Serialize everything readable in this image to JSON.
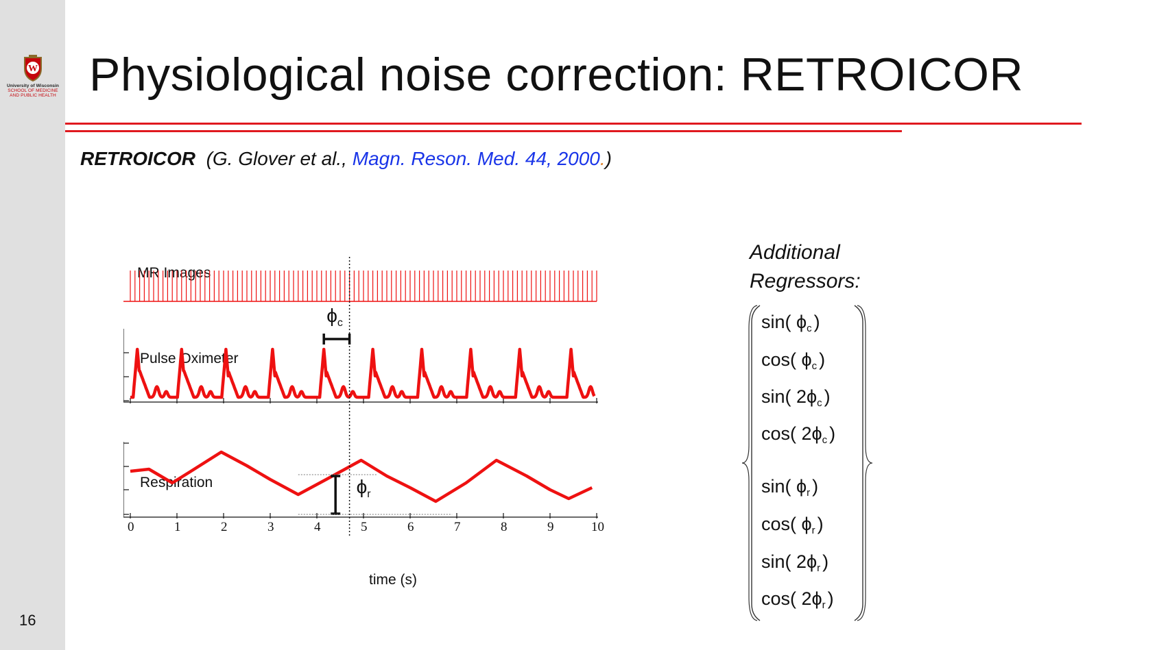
{
  "slide": {
    "number": "16",
    "title": "Physiological noise correction: RETROICOR",
    "logo": {
      "line1": "University of Wisconsin",
      "line2": "SCHOOL OF MEDICINE",
      "line3": "AND PUBLIC HEALTH"
    },
    "citation": {
      "acronym": "RETROICOR",
      "authors": "(G. Glover et al.,",
      "journal": "Magn. Reson. Med. 44, 2000",
      "dot": ".",
      "close": ")"
    },
    "additional_label_line1": "Additional",
    "additional_label_line2": "Regressors:",
    "regressors": [
      {
        "fn": "sin(",
        "coef": " ",
        "sym": "ϕ",
        "sub": "c",
        "close": ")"
      },
      {
        "fn": "cos(",
        "coef": " ",
        "sym": "ϕ",
        "sub": "c",
        "close": ")"
      },
      {
        "fn": "sin(",
        "coef": " 2",
        "sym": "ϕ",
        "sub": "c",
        "close": ")"
      },
      {
        "fn": "cos(",
        "coef": " 2",
        "sym": "ϕ",
        "sub": "c",
        "close": ")"
      },
      {
        "fn": "sin(",
        "coef": " ",
        "sym": "ϕ",
        "sub": "r",
        "close": ")"
      },
      {
        "fn": "cos(",
        "coef": " ",
        "sym": "ϕ",
        "sub": "r",
        "close": ")"
      },
      {
        "fn": "sin(",
        "coef": " 2",
        "sym": "ϕ",
        "sub": "r",
        "close": ")"
      },
      {
        "fn": "cos(",
        "coef": " 2",
        "sym": "ϕ",
        "sub": "r",
        "close": ")"
      }
    ]
  },
  "chart_data": {
    "type": "line",
    "xlabel": "time (s)",
    "xlim": [
      0,
      10
    ],
    "x_ticks": [
      "0",
      "1",
      "2",
      "3",
      "4",
      "5",
      "6",
      "7",
      "8",
      "9",
      "10"
    ],
    "marker_time": 4.7,
    "phi_c_label": "ϕ",
    "phi_c_sub": "c",
    "phi_r_label": "ϕ",
    "phi_r_sub": "r",
    "panels": [
      {
        "name": "MR Images",
        "kind": "spikes",
        "interval_s": 0.1
      },
      {
        "name": "Pulse Oximeter",
        "kind": "pulse",
        "peak_times": [
          0.15,
          1.1,
          2.05,
          3.05,
          4.15,
          5.2,
          6.25,
          7.3,
          8.35,
          9.45
        ]
      },
      {
        "name": "Respiration",
        "kind": "resp",
        "x": [
          0,
          0.4,
          0.9,
          1.3,
          1.95,
          2.5,
          3.0,
          3.6,
          4.2,
          4.95,
          5.5,
          6.0,
          6.55,
          7.2,
          7.85,
          8.5,
          9.0,
          9.4,
          9.9
        ],
        "y": [
          0.62,
          0.65,
          0.45,
          0.62,
          0.9,
          0.7,
          0.5,
          0.28,
          0.5,
          0.78,
          0.55,
          0.38,
          0.18,
          0.45,
          0.78,
          0.55,
          0.35,
          0.22,
          0.38
        ]
      }
    ],
    "color": "#ee1111"
  }
}
